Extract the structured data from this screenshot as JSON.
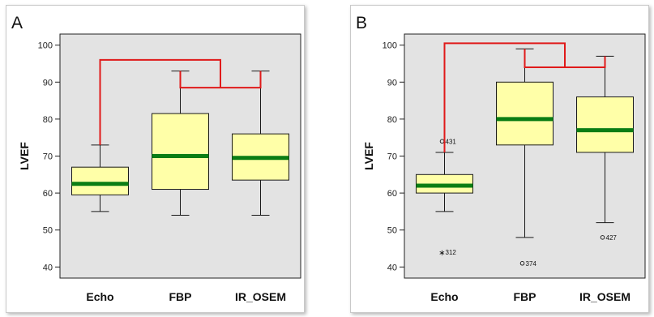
{
  "chart_data": [
    {
      "type": "boxplot",
      "panel_label": "A",
      "ylabel": "LVEF",
      "ylim": [
        37,
        103
      ],
      "yticks": [
        40,
        50,
        60,
        70,
        80,
        90,
        100
      ],
      "grid": false,
      "categories": [
        "Echo",
        "FBP",
        "IR_OSEM"
      ],
      "boxes": [
        {
          "name": "Echo",
          "whisker_low": 55,
          "q1": 59.5,
          "median": 62.5,
          "q3": 67,
          "whisker_high": 73
        },
        {
          "name": "FBP",
          "whisker_low": 54,
          "q1": 61,
          "median": 70,
          "q3": 81.5,
          "whisker_high": 93
        },
        {
          "name": "IR_OSEM",
          "whisker_low": 54,
          "q1": 63.5,
          "median": 69.5,
          "q3": 76,
          "whisker_high": 93
        }
      ],
      "outliers": [],
      "brackets": [
        {
          "level": 88.5,
          "from": "FBP",
          "to": "IR_OSEM",
          "joins_to": 96
        },
        {
          "level": 96,
          "from": "Echo",
          "to": "FBP/IR_OSEM pair"
        }
      ]
    },
    {
      "type": "boxplot",
      "panel_label": "B",
      "ylabel": "LVEF",
      "ylim": [
        37,
        103
      ],
      "yticks": [
        40,
        50,
        60,
        70,
        80,
        90,
        100
      ],
      "grid": false,
      "categories": [
        "Echo",
        "FBP",
        "IR_OSEM"
      ],
      "boxes": [
        {
          "name": "Echo",
          "whisker_low": 55,
          "q1": 60,
          "median": 62,
          "q3": 65,
          "whisker_high": 71
        },
        {
          "name": "FBP",
          "whisker_low": 48,
          "q1": 73,
          "median": 80,
          "q3": 90,
          "whisker_high": 99
        },
        {
          "name": "IR_OSEM",
          "whisker_low": 52,
          "q1": 71,
          "median": 77,
          "q3": 86,
          "whisker_high": 97
        }
      ],
      "outliers": [
        {
          "category": "Echo",
          "value": 74,
          "label": "431",
          "marker": "circle"
        },
        {
          "category": "Echo",
          "value": 44,
          "label": "312",
          "marker": "star"
        },
        {
          "category": "FBP",
          "value": 41,
          "label": "374",
          "marker": "circle"
        },
        {
          "category": "IR_OSEM",
          "value": 48,
          "label": "427",
          "marker": "circle"
        }
      ],
      "brackets": [
        {
          "level": 94,
          "from": "FBP",
          "to": "IR_OSEM",
          "joins_to": 100.5
        },
        {
          "level": 100.5,
          "from": "Echo",
          "to": "FBP/IR_OSEM pair"
        }
      ]
    }
  ],
  "colors": {
    "plot_background": "#e3e3e3",
    "box_fill": "#ffffa8",
    "median_line": "#0a7d14",
    "bracket": "#e01a1a",
    "axis": "#222222"
  }
}
